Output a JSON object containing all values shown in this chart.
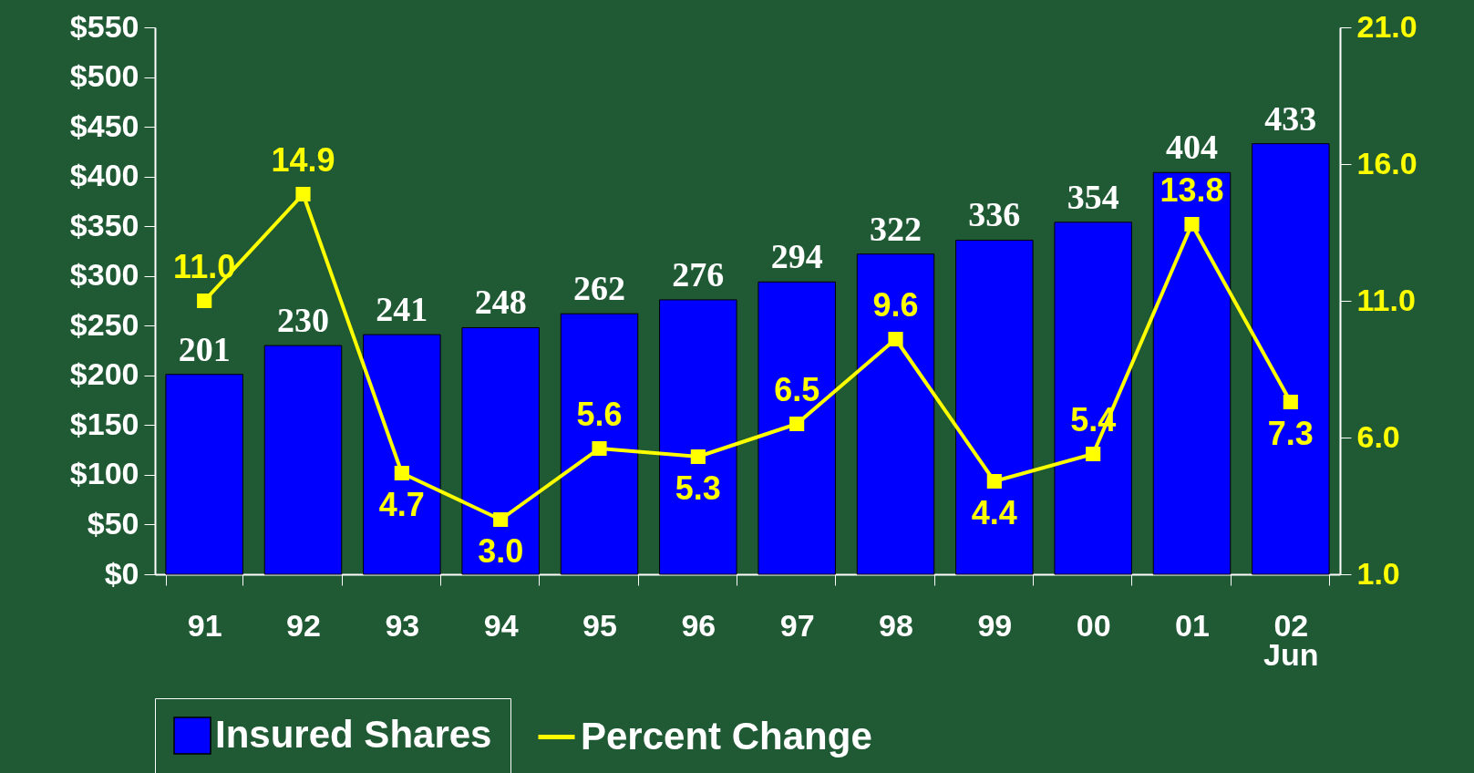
{
  "chart_data": {
    "type": "bar",
    "categories": [
      "91",
      "92",
      "93",
      "94",
      "95",
      "96",
      "97",
      "98",
      "99",
      "00",
      "01",
      "02\nJun"
    ],
    "series": [
      {
        "name": "Insured Shares",
        "color": "#0000ff",
        "values": [
          201,
          230,
          241,
          248,
          262,
          276,
          294,
          322,
          336,
          354,
          404,
          433
        ]
      },
      {
        "name": "Percent Change",
        "type": "line",
        "axis": "y2",
        "color": "#ffff00",
        "marker": "square",
        "values": [
          11.0,
          14.9,
          4.7,
          3.0,
          5.6,
          5.3,
          6.5,
          9.6,
          4.4,
          5.4,
          13.8,
          7.3
        ],
        "value_labels": [
          "11.0",
          "14.9",
          "4.7",
          "3.0",
          "5.6",
          "5.3",
          "6.5",
          "9.6",
          "4.4",
          "5.4",
          "13.8",
          "7.3"
        ]
      }
    ],
    "data_labels": true,
    "ylim": [
      0,
      550
    ],
    "yticks": [
      {
        "value": 0,
        "label": "$0"
      },
      {
        "value": 50,
        "label": "$50"
      },
      {
        "value": 100,
        "label": "$100"
      },
      {
        "value": 150,
        "label": "$150"
      },
      {
        "value": 200,
        "label": "$200"
      },
      {
        "value": 250,
        "label": "$250"
      },
      {
        "value": 300,
        "label": "$300"
      },
      {
        "value": 350,
        "label": "$350"
      },
      {
        "value": 400,
        "label": "$400"
      },
      {
        "value": 450,
        "label": "$450"
      },
      {
        "value": 500,
        "label": "$500"
      },
      {
        "value": 550,
        "label": "$550"
      }
    ],
    "y2lim": [
      1.0,
      21.0
    ],
    "y2ticks": [
      {
        "value": 1,
        "label": "1.0"
      },
      {
        "value": 6,
        "label": "6.0"
      },
      {
        "value": 11,
        "label": "11.0"
      },
      {
        "value": 16,
        "label": "16.0"
      },
      {
        "value": 21,
        "label": "21.0"
      }
    ],
    "grid": false,
    "legend": "bottom"
  }
}
